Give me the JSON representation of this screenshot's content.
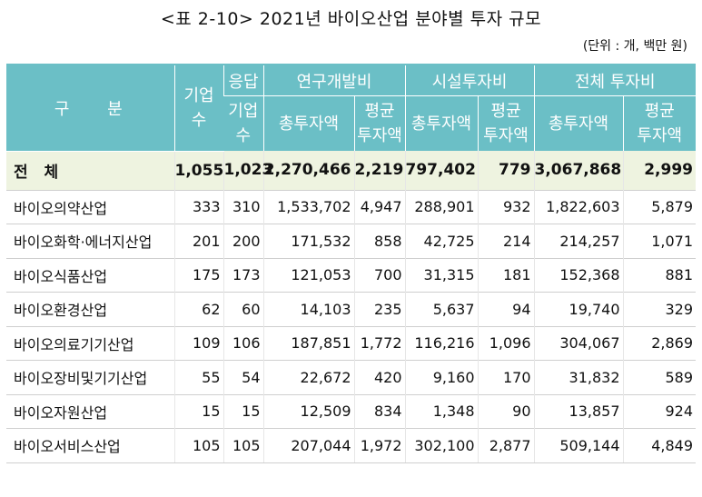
{
  "title": "<표 2-10> 2021년 바이오산업 분야별 투자 규모",
  "unit": "(단위 : 개, 백만 원)",
  "header": {
    "category": "구 분",
    "companies": "기업\n수",
    "responded_top": "응답",
    "responded_bottom": "기업\n수",
    "rnd": "연구개발비",
    "facility": "시설투자비",
    "total_invest": "전체 투자비",
    "sum_label": "총투자액",
    "avg_label": "평균\n투자액"
  },
  "total": {
    "label": "전 체",
    "values": [
      "1,055",
      "1,023",
      "2,270,466",
      "2,219",
      "797,402",
      "779",
      "3,067,868",
      "2,999"
    ]
  },
  "rows": [
    {
      "label": "바이오의약산업",
      "values": [
        "333",
        "310",
        "1,533,702",
        "4,947",
        "288,901",
        "932",
        "1,822,603",
        "5,879"
      ]
    },
    {
      "label": "바이오화학·에너지산업",
      "values": [
        "201",
        "200",
        "171,532",
        "858",
        "42,725",
        "214",
        "214,257",
        "1,071"
      ]
    },
    {
      "label": "바이오식품산업",
      "values": [
        "175",
        "173",
        "121,053",
        "700",
        "31,315",
        "181",
        "152,368",
        "881"
      ]
    },
    {
      "label": "바이오환경산업",
      "values": [
        "62",
        "60",
        "14,103",
        "235",
        "5,637",
        "94",
        "19,740",
        "329"
      ]
    },
    {
      "label": "바이오의료기기산업",
      "values": [
        "109",
        "106",
        "187,851",
        "1,772",
        "116,216",
        "1,096",
        "304,067",
        "2,869"
      ]
    },
    {
      "label": "바이오장비및기기산업",
      "values": [
        "55",
        "54",
        "22,672",
        "420",
        "9,160",
        "170",
        "31,832",
        "589"
      ]
    },
    {
      "label": "바이오자원산업",
      "values": [
        "15",
        "15",
        "12,509",
        "834",
        "1,348",
        "90",
        "13,857",
        "924"
      ]
    },
    {
      "label": "바이오서비스산업",
      "values": [
        "105",
        "105",
        "207,044",
        "1,972",
        "302,100",
        "2,877",
        "509,144",
        "4,849"
      ]
    }
  ]
}
